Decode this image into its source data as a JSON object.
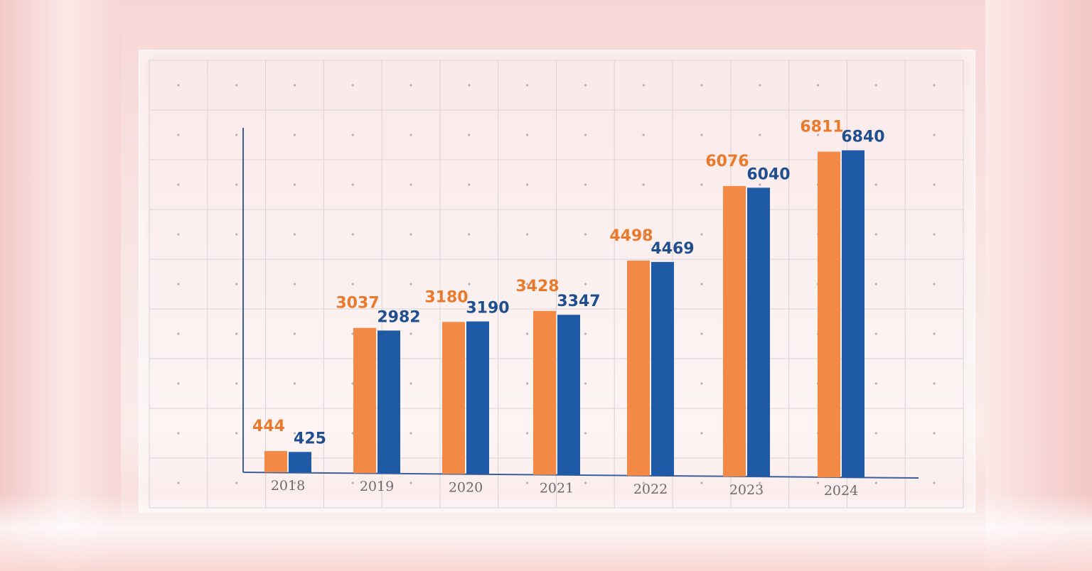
{
  "chart_data": {
    "type": "bar",
    "title": "",
    "xlabel": "",
    "ylabel": "",
    "categories": [
      "2018",
      "2019",
      "2020",
      "2021",
      "2022",
      "2023",
      "2024"
    ],
    "series": [
      {
        "values": [
          444,
          3037,
          3180,
          3428,
          4498,
          6076,
          6811
        ],
        "color": "#f28a45",
        "label_color": "#e97a2c"
      },
      {
        "values": [
          425,
          2982,
          3190,
          3347,
          4469,
          6040,
          6840
        ],
        "color": "#1f5aa6",
        "label_color": "#1f4f8f"
      }
    ],
    "ylim": [
      0,
      7500
    ],
    "grid": true,
    "legend": "none"
  }
}
